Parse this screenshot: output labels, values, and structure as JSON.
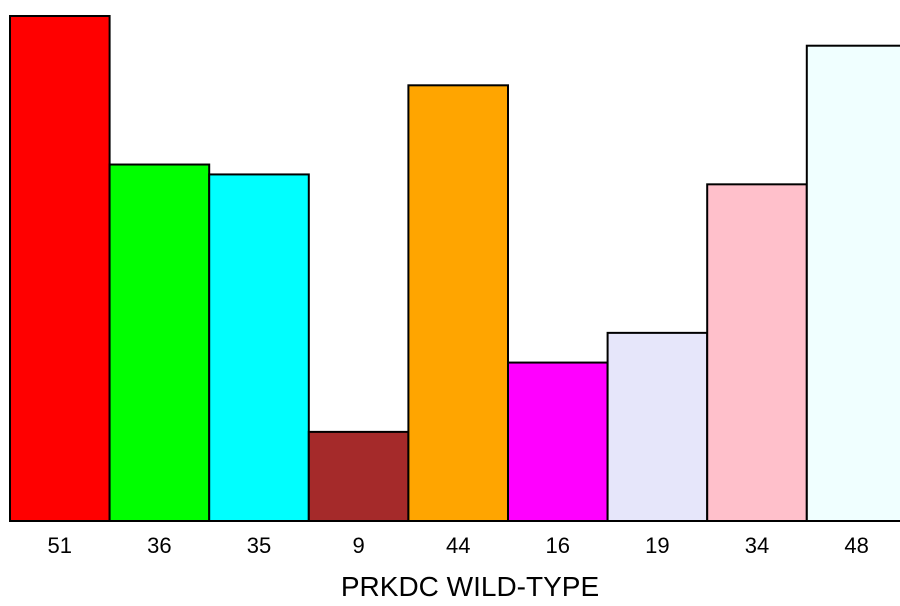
{
  "chart_data": {
    "type": "bar",
    "title": "",
    "xlabel": "PRKDC WILD-TYPE",
    "ylabel": "",
    "categories": [
      "51",
      "36",
      "35",
      "9",
      "44",
      "16",
      "19",
      "34",
      "48"
    ],
    "values": [
      51,
      36,
      35,
      9,
      44,
      16,
      19,
      34,
      48
    ],
    "colors": [
      "#ff0000",
      "#00ff00",
      "#00ffff",
      "#a52a2a",
      "#ffa500",
      "#ff00ff",
      "#e6e6fa",
      "#ffc0cb",
      "#f0ffff"
    ],
    "ylim": [
      0,
      51
    ],
    "grid": false,
    "legend": "none"
  }
}
